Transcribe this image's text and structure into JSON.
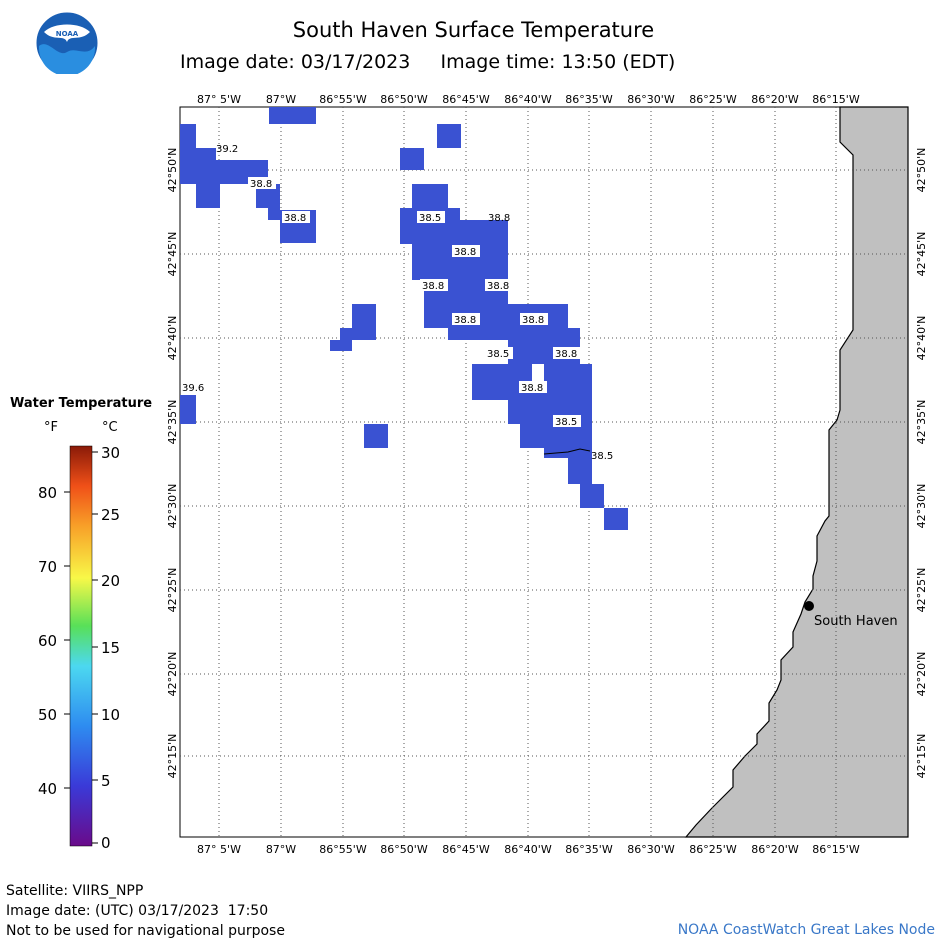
{
  "header": {
    "title": "South Haven Surface Temperature",
    "image_date_label": "Image date: 03/17/2023",
    "image_time_label": "Image time: 13:50 (EDT)"
  },
  "logo": {
    "name": "noaa-logo",
    "text": "NOAA"
  },
  "legend": {
    "title": "Water Temperature",
    "unit_f": "°F",
    "unit_c": "°C",
    "f_ticks": [
      "80",
      "70",
      "60",
      "50",
      "40"
    ],
    "c_ticks": [
      "30",
      "25",
      "20",
      "15",
      "10",
      "5",
      "0"
    ],
    "colors": [
      "#6a0a8a",
      "#3a3ad8",
      "#2e8cf0",
      "#4cd8f0",
      "#58e058",
      "#f8f848",
      "#f8a028",
      "#f05018",
      "#8a1a08"
    ]
  },
  "map": {
    "lon_top_labels": [
      "87° 5'W",
      "87°W",
      "86°55'W",
      "86°50'W",
      "86°45'W",
      "86°40'W",
      "86°35'W",
      "86°30'W",
      "86°25'W",
      "86°20'W",
      "86°15'W"
    ],
    "lon_bottom_labels": [
      "87° 5'W",
      "87°W",
      "86°55'W",
      "86°50'W",
      "86°45'W",
      "86°40'W",
      "86°35'W",
      "86°30'W",
      "86°25'W",
      "86°20'W",
      "86°15'W"
    ],
    "lat_labels": [
      "42°50'N",
      "42°45'N",
      "42°40'N",
      "42°35'N",
      "42°30'N",
      "42°25'N",
      "42°20'N",
      "42°15'N"
    ],
    "city": "South Haven",
    "land_color": "#c0c0c0",
    "water_cell_color": "#3a52d2",
    "temp_labels": [
      "39.2",
      "38.8",
      "38.8",
      "38.5",
      "38.8",
      "38.8",
      "38.8",
      "38.8",
      "38.8",
      "38.8",
      "38.5",
      "38.8",
      "39.6",
      "38.8",
      "38.5",
      "38.5"
    ]
  },
  "footer": {
    "satellite": "Satellite: VIIRS_NPP",
    "utc_date": "Image date: (UTC) 03/17/2023  17:50",
    "disclaimer": "Not to be used for navigational purpose",
    "credit": "NOAA CoastWatch Great Lakes Node"
  }
}
